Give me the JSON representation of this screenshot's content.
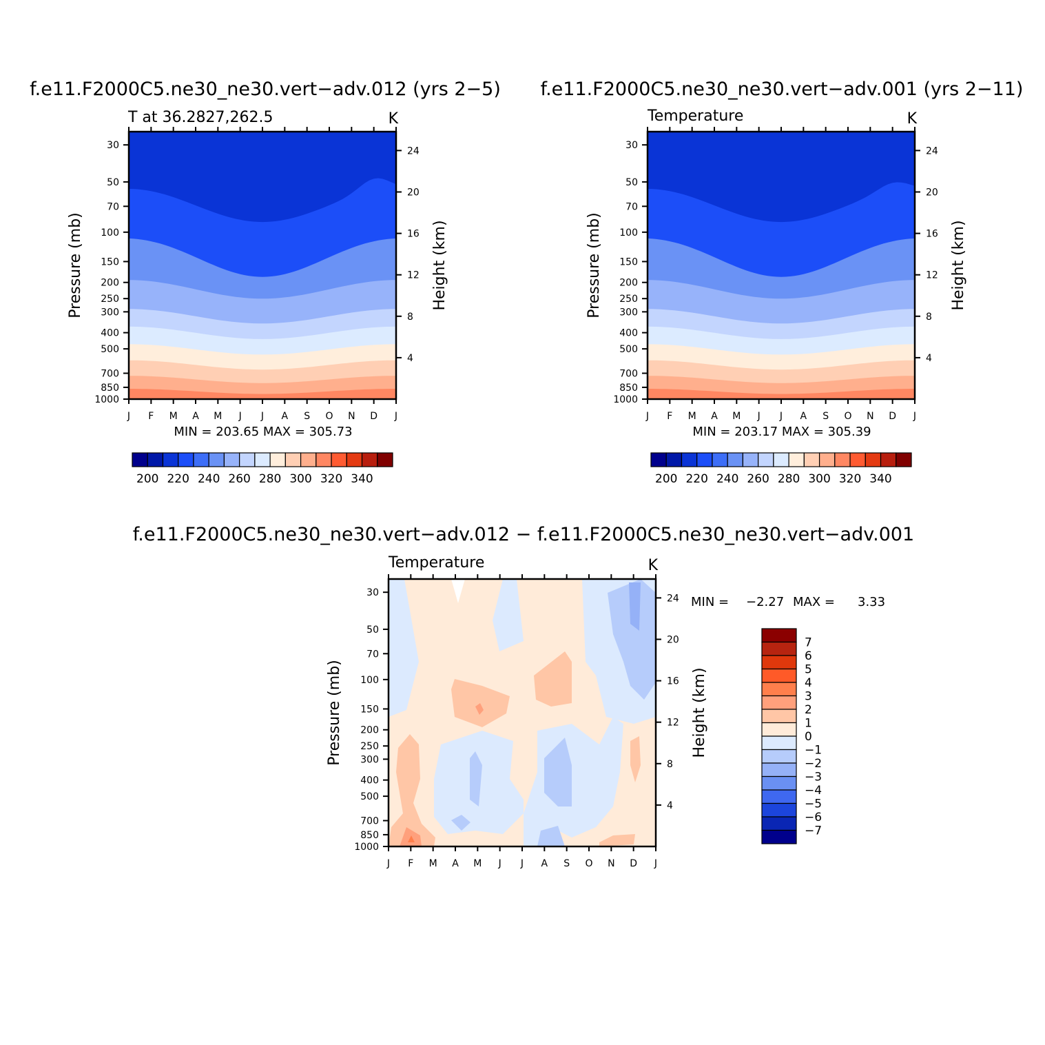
{
  "chart_data": [
    {
      "id": "p1",
      "type": "heatmap",
      "title": "f.e11.F2000C5.ne30_ne30.vert−adv.012 (yrs 2−5)",
      "subtitle_left": "T at 36.2827,262.5",
      "subtitle_right": "K",
      "ylabel": "Pressure (mb)",
      "ylabel_right": "Height (km)",
      "x_ticks": [
        "J",
        "F",
        "M",
        "A",
        "M",
        "J",
        "J",
        "A",
        "S",
        "O",
        "N",
        "D",
        "J"
      ],
      "y_ticks": [
        "30",
        "50",
        "70",
        "100",
        "150",
        "200",
        "250",
        "300",
        "400",
        "500",
        "700",
        "850",
        "1000"
      ],
      "y_ticks_right": [
        "24",
        "20",
        "16",
        "12",
        "8",
        "4"
      ],
      "ylim": [
        1000,
        25
      ],
      "y_scale": "log",
      "stats": "MIN = 203.65 MAX = 305.73",
      "colorbar": {
        "orientation": "horizontal",
        "labels": [
          "200",
          "220",
          "240",
          "260",
          "280",
          "300",
          "320",
          "340"
        ],
        "colors": [
          "#00008c",
          "#0018a8",
          "#0a34d6",
          "#1c4ef8",
          "#3d6ef7",
          "#6a92f5",
          "#97b3fa",
          "#c3d5fe",
          "#dcebff",
          "#ffeedc",
          "#ffcfb4",
          "#ffaf8d",
          "#ff8762",
          "#ff5b32",
          "#e43a12",
          "#b81e0e",
          "#800000"
        ]
      },
      "z_levels": [
        18.7,
        14.4,
        10.6,
        8.0,
        6.4,
        4.8,
        3.3,
        1.9,
        0.75
      ],
      "z_units": "K",
      "fill_bins": [
        2,
        3,
        5,
        6,
        7,
        8,
        9,
        10,
        11,
        12
      ]
    },
    {
      "id": "p2",
      "type": "heatmap",
      "title": "f.e11.F2000C5.ne30_ne30.vert−adv.001 (yrs 2−11)",
      "subtitle_left": "Temperature",
      "subtitle_right": "K",
      "ylabel": "Pressure (mb)",
      "ylabel_right": "Height (km)",
      "x_ticks": [
        "J",
        "F",
        "M",
        "A",
        "M",
        "J",
        "J",
        "A",
        "S",
        "O",
        "N",
        "D",
        "J"
      ],
      "y_ticks": [
        "30",
        "50",
        "70",
        "100",
        "150",
        "200",
        "250",
        "300",
        "400",
        "500",
        "700",
        "850",
        "1000"
      ],
      "y_ticks_right": [
        "24",
        "20",
        "16",
        "12",
        "8",
        "4"
      ],
      "ylim": [
        1000,
        25
      ],
      "y_scale": "log",
      "stats": "MIN = 203.17 MAX = 305.39",
      "colorbar": {
        "orientation": "horizontal",
        "labels": [
          "200",
          "220",
          "240",
          "260",
          "280",
          "300",
          "320",
          "340"
        ]
      },
      "fill_bins": [
        2,
        3,
        5,
        6,
        7,
        8,
        9,
        10,
        11,
        12
      ]
    },
    {
      "id": "p3",
      "type": "heatmap",
      "title": "f.e11.F2000C5.ne30_ne30.vert−adv.012 − f.e11.F2000C5.ne30_ne30.vert−adv.001",
      "subtitle_left": "Temperature",
      "subtitle_right": "K",
      "ylabel": "Pressure (mb)",
      "ylabel_right": "Height (km)",
      "x_ticks": [
        "J",
        "F",
        "M",
        "A",
        "M",
        "J",
        "J",
        "A",
        "S",
        "O",
        "N",
        "D",
        "J"
      ],
      "y_ticks": [
        "30",
        "50",
        "70",
        "100",
        "150",
        "200",
        "250",
        "300",
        "400",
        "500",
        "700",
        "850",
        "1000"
      ],
      "y_ticks_right": [
        "24",
        "20",
        "16",
        "12",
        "8",
        "4"
      ],
      "ylim": [
        1000,
        25
      ],
      "y_scale": "log",
      "stats_min_label": "MIN =",
      "stats_min": "−2.27",
      "stats_max_label": "MAX =",
      "stats_max": "3.33",
      "colorbar": {
        "orientation": "vertical",
        "labels": [
          "7",
          "6",
          "5",
          "4",
          "3",
          "2",
          "1",
          "0",
          "−1",
          "−2",
          "−3",
          "−4",
          "−5",
          "−6",
          "−7"
        ],
        "colors": [
          "#8b0000",
          "#b72410",
          "#e0380c",
          "#ff5a28",
          "#ff7f4c",
          "#ffa07c",
          "#ffc6a6",
          "#ffebd9",
          "#dceafe",
          "#b6ccfb",
          "#95b1f7",
          "#6a90f3",
          "#3f68f0",
          "#1c45dc",
          "#0a26b4",
          "#00008c"
        ]
      }
    }
  ]
}
